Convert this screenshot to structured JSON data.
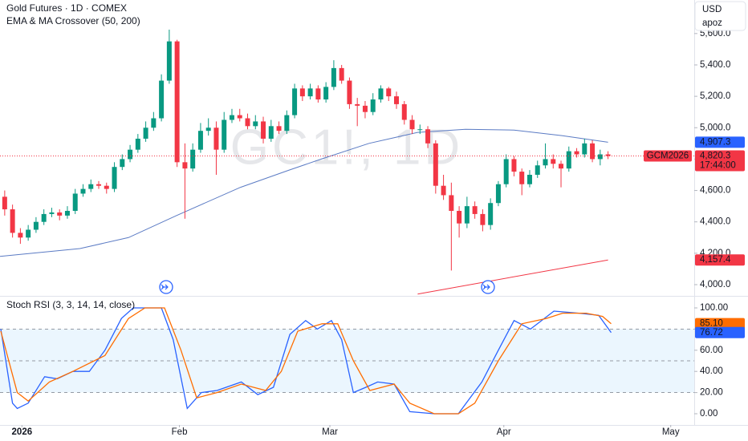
{
  "toolbar": {
    "currency": "USD",
    "user": "apoz"
  },
  "chart_data": [
    {
      "type": "candlestick",
      "title": "Gold Futures · 1D · COMEX",
      "subtitle": "EMA & MA Crossover (50, 200)",
      "watermark": "GC1!, 1D",
      "up_color": "#089981",
      "down_color": "#f23645",
      "open": [
        4560,
        4480,
        4330,
        4300,
        4350,
        4400,
        4450,
        4460,
        4440,
        4470,
        4580,
        4610,
        4640,
        4630,
        4610,
        4750,
        4800,
        4860,
        4930,
        5000,
        5060,
        5300,
        5550,
        4780,
        4740,
        4860,
        4980,
        5000,
        4860,
        5050,
        5080,
        5060,
        5010,
        5040,
        4930,
        5010,
        4980,
        5080,
        5250,
        5200,
        5250,
        5180,
        5260,
        5380,
        5300,
        5150,
        5140,
        5100,
        5180,
        5250,
        5200,
        5150,
        5050,
        4990,
        4990,
        4900,
        4630,
        4570,
        4470,
        4390,
        4500,
        4450,
        4380,
        4520,
        4640,
        4800,
        4720,
        4640,
        4700,
        4760,
        4800,
        4770,
        4740,
        4850,
        4830,
        4900,
        4800,
        4830
      ],
      "high": [
        4600,
        4510,
        4360,
        4380,
        4430,
        4480,
        4490,
        4480,
        4500,
        4610,
        4640,
        4670,
        4660,
        4650,
        4780,
        4830,
        4890,
        4960,
        5040,
        5100,
        5340,
        5625,
        5560,
        4900,
        4900,
        5030,
        5060,
        5040,
        5100,
        5120,
        5120,
        5090,
        5080,
        5070,
        5050,
        5040,
        5110,
        5280,
        5270,
        5280,
        5270,
        5290,
        5430,
        5400,
        5320,
        5190,
        5170,
        5220,
        5270,
        5260,
        5230,
        5170,
        5080,
        5020,
        5010,
        4920,
        4700,
        4650,
        4500,
        4560,
        4530,
        4480,
        4550,
        4660,
        4830,
        4820,
        4740,
        4730,
        4790,
        4900,
        4830,
        4790,
        4880,
        4870,
        4930,
        4920,
        4860,
        4850
      ],
      "low": [
        4440,
        4300,
        4260,
        4280,
        4330,
        4380,
        4430,
        4410,
        4420,
        4450,
        4560,
        4590,
        4610,
        4580,
        4590,
        4730,
        4780,
        4840,
        4910,
        4980,
        5040,
        5280,
        4750,
        4420,
        4720,
        4840,
        4950,
        4700,
        4840,
        5030,
        5040,
        4990,
        4990,
        4900,
        4910,
        4960,
        4960,
        5060,
        5170,
        5180,
        5160,
        5160,
        5240,
        5280,
        5120,
        5010,
        5060,
        5080,
        5160,
        5170,
        5120,
        5020,
        4960,
        4960,
        4870,
        4580,
        4540,
        4090,
        4300,
        4360,
        4420,
        4340,
        4350,
        4500,
        4620,
        4690,
        4570,
        4620,
        4680,
        4740,
        4740,
        4620,
        4720,
        4810,
        4810,
        4780,
        4760,
        4800
      ],
      "close": [
        4480,
        4330,
        4300,
        4350,
        4400,
        4450,
        4460,
        4440,
        4470,
        4580,
        4610,
        4640,
        4630,
        4610,
        4750,
        4800,
        4860,
        4930,
        5000,
        5060,
        5300,
        5550,
        4780,
        4740,
        4860,
        4980,
        5000,
        4860,
        5050,
        5080,
        5060,
        5010,
        5040,
        4930,
        5010,
        4980,
        5080,
        5250,
        5200,
        5250,
        5180,
        5260,
        5380,
        5300,
        5150,
        5140,
        5100,
        5180,
        5250,
        5200,
        5150,
        5050,
        4990,
        4990,
        4900,
        4630,
        4570,
        4470,
        4390,
        4500,
        4450,
        4380,
        4520,
        4640,
        4800,
        4720,
        4640,
        4700,
        4760,
        4800,
        4770,
        4740,
        4850,
        4830,
        4900,
        4800,
        4830,
        4820.3
      ],
      "series": [
        {
          "color": "#5b7bc4",
          "x": [
            -0.6,
            9.6,
            15.8,
            21.9,
            30.1,
            36.3,
            40.4,
            46.5,
            52.7,
            58.8,
            65.0,
            71.1,
            77
          ],
          "values": [
            4180,
            4230,
            4300,
            4440,
            4620,
            4730,
            4800,
            4900,
            4970,
            4990,
            4985,
            4950,
            4907.3
          ]
        },
        {
          "color": "#f23645",
          "x": [
            52.7,
            77
          ],
          "values": [
            3940,
            4157.4
          ]
        }
      ],
      "current_price": 4820.3,
      "price_labels": [
        {
          "value": 4907.3,
          "label": "4,907.3",
          "color": "#2962ff"
        },
        {
          "value": 4820.3,
          "label": "4,820.3",
          "symbol": "GCM2026",
          "time": "17:44:00",
          "color": "#f23645"
        },
        {
          "value": 4157.4,
          "label": "4,157.4",
          "color": "#f23645"
        }
      ],
      "xlim": [
        -0.6,
        88
      ],
      "xticks": [
        {
          "value": 2.2,
          "label": "2026"
        },
        {
          "value": 22.3,
          "label": "Feb"
        },
        {
          "value": 41.5,
          "label": "Mar"
        },
        {
          "value": 63.7,
          "label": "Apr"
        },
        {
          "value": 85.0,
          "label": "May"
        }
      ],
      "ylim": [
        3933.6,
        5813.7
      ],
      "yticks": [
        {
          "value": 4000,
          "label": "4,000.0"
        },
        {
          "value": 4200,
          "label": "4,200.0"
        },
        {
          "value": 4400,
          "label": "4,400.0"
        },
        {
          "value": 4600,
          "label": "4,600.0"
        },
        {
          "value": 4800,
          "label": "4,800.0"
        },
        {
          "value": 5000,
          "label": "5,000.0"
        },
        {
          "value": 5200,
          "label": "5,200.0"
        },
        {
          "value": 5400,
          "label": "5,400.0"
        },
        {
          "value": 5600,
          "label": "5,600.0"
        }
      ]
    },
    {
      "type": "line",
      "title": "Stoch RSI (3, 3, 14, 14, close)",
      "bands": [
        20,
        50,
        80
      ],
      "band_fill": "#e3f2fd",
      "series": [
        {
          "color": "#2962ff",
          "x": [
            -0.5,
            1.0,
            1.6,
            3.0,
            5.1,
            6.7,
            8.7,
            10.8,
            12.8,
            14.9,
            16.4,
            20.0,
            21.5,
            23.3,
            25.1,
            27.1,
            30.2,
            32.3,
            34.3,
            36.4,
            38.4,
            39.9,
            41.7,
            43.0,
            44.5,
            46.1,
            47.6,
            49.7,
            51.7,
            54.8,
            57.9,
            58.9,
            60.9,
            63.0,
            65.0,
            67.1,
            70.1,
            73.3,
            75.8,
            77.4
          ],
          "values": [
            80,
            10,
            5,
            10,
            35,
            33,
            40,
            40,
            60,
            90,
            100,
            100,
            70,
            5,
            20,
            22,
            30,
            18,
            25,
            75,
            88,
            80,
            88,
            70,
            20,
            25,
            30,
            28,
            2,
            0,
            0,
            10,
            30,
            60,
            88,
            80,
            97,
            95,
            93,
            76.72
          ]
        },
        {
          "color": "#ff6d00",
          "x": [
            -0.5,
            1.6,
            3.0,
            5.7,
            8.7,
            12.8,
            15.8,
            17.9,
            20.4,
            22.5,
            24.5,
            27.1,
            30.2,
            33.3,
            35.3,
            37.4,
            40.5,
            42.5,
            44.5,
            46.6,
            49.7,
            51.7,
            54.8,
            57.9,
            60.0,
            63.0,
            66.0,
            69.1,
            71.2,
            74.2,
            76.3,
            77.4
          ],
          "values": [
            78,
            20,
            12,
            30,
            40,
            55,
            90,
            100,
            100,
            60,
            15,
            20,
            28,
            22,
            40,
            78,
            85,
            85,
            50,
            22,
            28,
            10,
            0,
            0,
            10,
            50,
            85,
            90,
            95,
            95,
            92,
            85.1
          ]
        }
      ],
      "price_labels": [
        {
          "value": 85.1,
          "label": "85.10",
          "color": "#ff6d00"
        },
        {
          "value": 76.72,
          "label": "76.72",
          "color": "#2962ff"
        }
      ],
      "xlim": [
        -0.6,
        88
      ],
      "ylim": [
        -10.6,
        110.6
      ],
      "yticks": [
        {
          "value": 0,
          "label": "0.00"
        },
        {
          "value": 20,
          "label": "20.00"
        },
        {
          "value": 40,
          "label": "40.00"
        },
        {
          "value": 60,
          "label": "60.00"
        },
        {
          "value": 80,
          "label": "80.00"
        },
        {
          "value": 100,
          "label": "100.00"
        }
      ]
    }
  ]
}
